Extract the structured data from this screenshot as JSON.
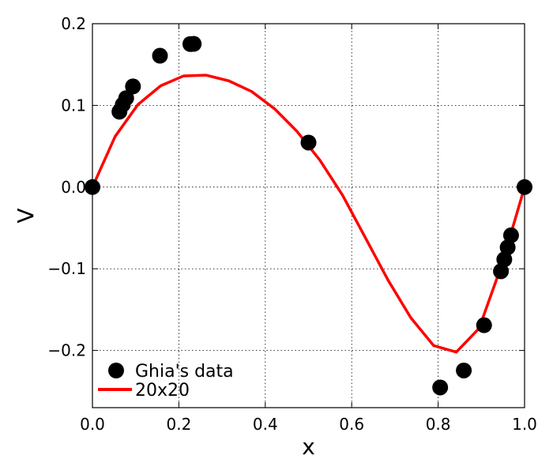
{
  "chart_data": {
    "type": "line",
    "title": "",
    "xlabel": "x",
    "ylabel": "V",
    "xlim": [
      0.0,
      1.0
    ],
    "ylim": [
      -0.27,
      0.2
    ],
    "xticks": [
      0.0,
      0.2,
      0.4,
      0.6,
      0.8,
      1.0
    ],
    "xtick_labels": [
      "0.0",
      "0.2",
      "0.4",
      "0.6",
      "0.8",
      "1.0"
    ],
    "yticks": [
      0.2,
      0.1,
      0.0,
      -0.1,
      -0.2
    ],
    "ytick_labels": [
      "0.2",
      "0.1",
      "0.0",
      "−0.1",
      "−0.2"
    ],
    "grid": true,
    "legend_position": "bottom-left",
    "series": [
      {
        "name": "Ghia's data",
        "kind": "scatter",
        "color": "#000000",
        "x": [
          0.0,
          0.0625,
          0.0703,
          0.0781,
          0.0938,
          0.1563,
          0.2266,
          0.2344,
          0.5,
          0.8047,
          0.8594,
          0.9063,
          0.9453,
          0.9531,
          0.9609,
          0.9688,
          1.0
        ],
        "y": [
          0.0,
          0.0923,
          0.1009,
          0.1089,
          0.1232,
          0.1608,
          0.1751,
          0.1753,
          0.0545,
          -0.2453,
          -0.2245,
          -0.1691,
          -0.1031,
          -0.0886,
          -0.0739,
          -0.0591,
          0.0
        ]
      },
      {
        "name": "20x20",
        "kind": "line",
        "color": "#ff0000",
        "x": [
          0.0,
          0.0526,
          0.1053,
          0.1579,
          0.2105,
          0.2632,
          0.3158,
          0.3684,
          0.4211,
          0.4737,
          0.5263,
          0.5789,
          0.6316,
          0.6842,
          0.7368,
          0.7895,
          0.8421,
          0.8947,
          0.9474,
          1.0
        ],
        "y": [
          0.0,
          0.062,
          0.101,
          0.124,
          0.136,
          0.137,
          0.13,
          0.117,
          0.096,
          0.068,
          0.033,
          -0.01,
          -0.062,
          -0.114,
          -0.16,
          -0.194,
          -0.202,
          -0.173,
          -0.095,
          0.0
        ]
      }
    ]
  }
}
